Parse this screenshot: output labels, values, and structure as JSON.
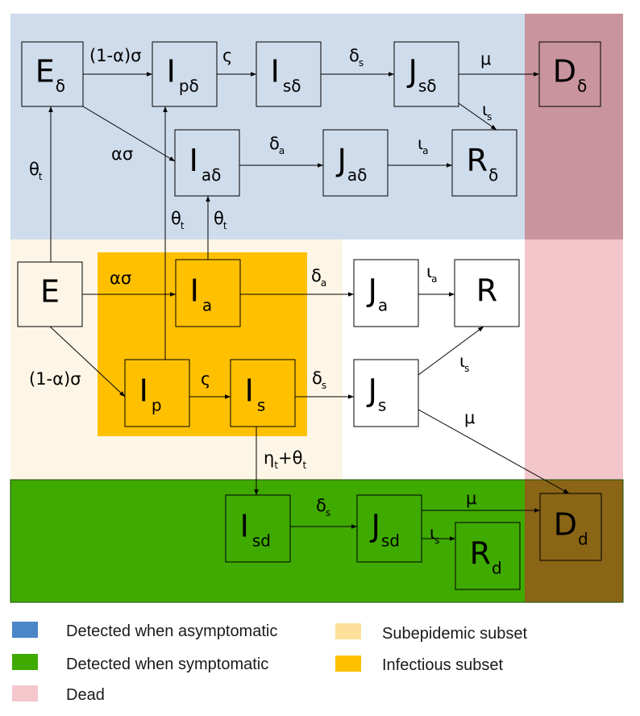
{
  "colors": {
    "detected_asymptomatic": "#cfdceb",
    "detected_symptomatic": "#3faa00",
    "dead": "#f3c6cc",
    "dead_overlap_blue": "#c9949e",
    "dead_overlap_green": "#8a6516",
    "subepidemic": "#fdf6e6",
    "infectious": "#ffc000",
    "legend_blue": "#4a86c8",
    "legend_green": "#3faa00",
    "legend_pink": "#f4c7cd",
    "legend_subepidemic": "#fde09a",
    "legend_infectious": "#ffc000"
  },
  "nodes": [
    {
      "id": "E_delta",
      "main": "E",
      "sub": "δ"
    },
    {
      "id": "Ip_delta",
      "main": "I",
      "sub": "pδ"
    },
    {
      "id": "Is_delta",
      "main": "I",
      "sub": "sδ"
    },
    {
      "id": "Js_delta",
      "main": "J",
      "sub": "sδ"
    },
    {
      "id": "D_delta",
      "main": "D",
      "sub": "δ"
    },
    {
      "id": "Ia_delta",
      "main": "I",
      "sub": "aδ"
    },
    {
      "id": "Ja_delta",
      "main": "J",
      "sub": "aδ"
    },
    {
      "id": "R_delta",
      "main": "R",
      "sub": "δ"
    },
    {
      "id": "E",
      "main": "E",
      "sub": ""
    },
    {
      "id": "Ia",
      "main": "I",
      "sub": "a"
    },
    {
      "id": "Ja",
      "main": "J",
      "sub": "a"
    },
    {
      "id": "R",
      "main": "R",
      "sub": ""
    },
    {
      "id": "Ip",
      "main": "I",
      "sub": "p"
    },
    {
      "id": "Is",
      "main": "I",
      "sub": "s"
    },
    {
      "id": "Js",
      "main": "J",
      "sub": "s"
    },
    {
      "id": "Isd",
      "main": "I",
      "sub": "sd"
    },
    {
      "id": "Jsd",
      "main": "J",
      "sub": "sd"
    },
    {
      "id": "Rd",
      "main": "R",
      "sub": "d"
    },
    {
      "id": "Dd",
      "main": "D",
      "sub": "d"
    }
  ],
  "edges": [
    {
      "from": "E_delta",
      "to": "Ip_delta",
      "label": "(1-α)σ",
      "label_sub": ""
    },
    {
      "from": "Ip_delta",
      "to": "Is_delta",
      "label": "ς",
      "label_sub": ""
    },
    {
      "from": "Is_delta",
      "to": "Js_delta",
      "label": "δ",
      "label_sub": "s"
    },
    {
      "from": "Js_delta",
      "to": "D_delta",
      "label": "μ",
      "label_sub": ""
    },
    {
      "from": "Js_delta",
      "to": "R_delta",
      "label": "ι",
      "label_sub": "s"
    },
    {
      "from": "E_delta",
      "to": "Ia_delta",
      "label": "ασ",
      "label_sub": ""
    },
    {
      "from": "Ia_delta",
      "to": "Ja_delta",
      "label": "δ",
      "label_sub": "a"
    },
    {
      "from": "Ja_delta",
      "to": "R_delta",
      "label": "ι",
      "label_sub": "a"
    },
    {
      "from": "E",
      "to": "E_delta",
      "label": "θ",
      "label_sub": "t"
    },
    {
      "from": "Ip",
      "to": "Ip_delta",
      "label": "θ",
      "label_sub": "t"
    },
    {
      "from": "Ia",
      "to": "Ia_delta",
      "label": "θ",
      "label_sub": "t"
    },
    {
      "from": "E",
      "to": "Ia",
      "label": "ασ",
      "label_sub": ""
    },
    {
      "from": "Ia",
      "to": "Ja",
      "label": "δ",
      "label_sub": "a"
    },
    {
      "from": "Ja",
      "to": "R",
      "label": "ι",
      "label_sub": "a"
    },
    {
      "from": "E",
      "to": "Ip",
      "label": "(1-α)σ",
      "label_sub": ""
    },
    {
      "from": "Ip",
      "to": "Is",
      "label": "ς",
      "label_sub": ""
    },
    {
      "from": "Is",
      "to": "Js",
      "label": "δ",
      "label_sub": "s"
    },
    {
      "from": "Js",
      "to": "R",
      "label": "ι",
      "label_sub": "s"
    },
    {
      "from": "Js",
      "to": "Dd",
      "label": "μ",
      "label_sub": ""
    },
    {
      "from": "Is",
      "to": "Isd",
      "label": "η+θ",
      "label_sub": "t"
    },
    {
      "from": "Isd",
      "to": "Jsd",
      "label": "δ",
      "label_sub": "s"
    },
    {
      "from": "Jsd",
      "to": "Dd",
      "label": "μ",
      "label_sub": ""
    },
    {
      "from": "Jsd",
      "to": "Rd",
      "label": "ι",
      "label_sub": "s"
    }
  ],
  "legend": [
    {
      "id": "asymptomatic",
      "label": "Detected when asymptomatic"
    },
    {
      "id": "symptomatic",
      "label": "Detected when symptomatic"
    },
    {
      "id": "dead",
      "label": "Dead"
    },
    {
      "id": "subepidemic",
      "label": "Subepidemic subset"
    },
    {
      "id": "infectious",
      "label": "Infectious subset"
    }
  ]
}
